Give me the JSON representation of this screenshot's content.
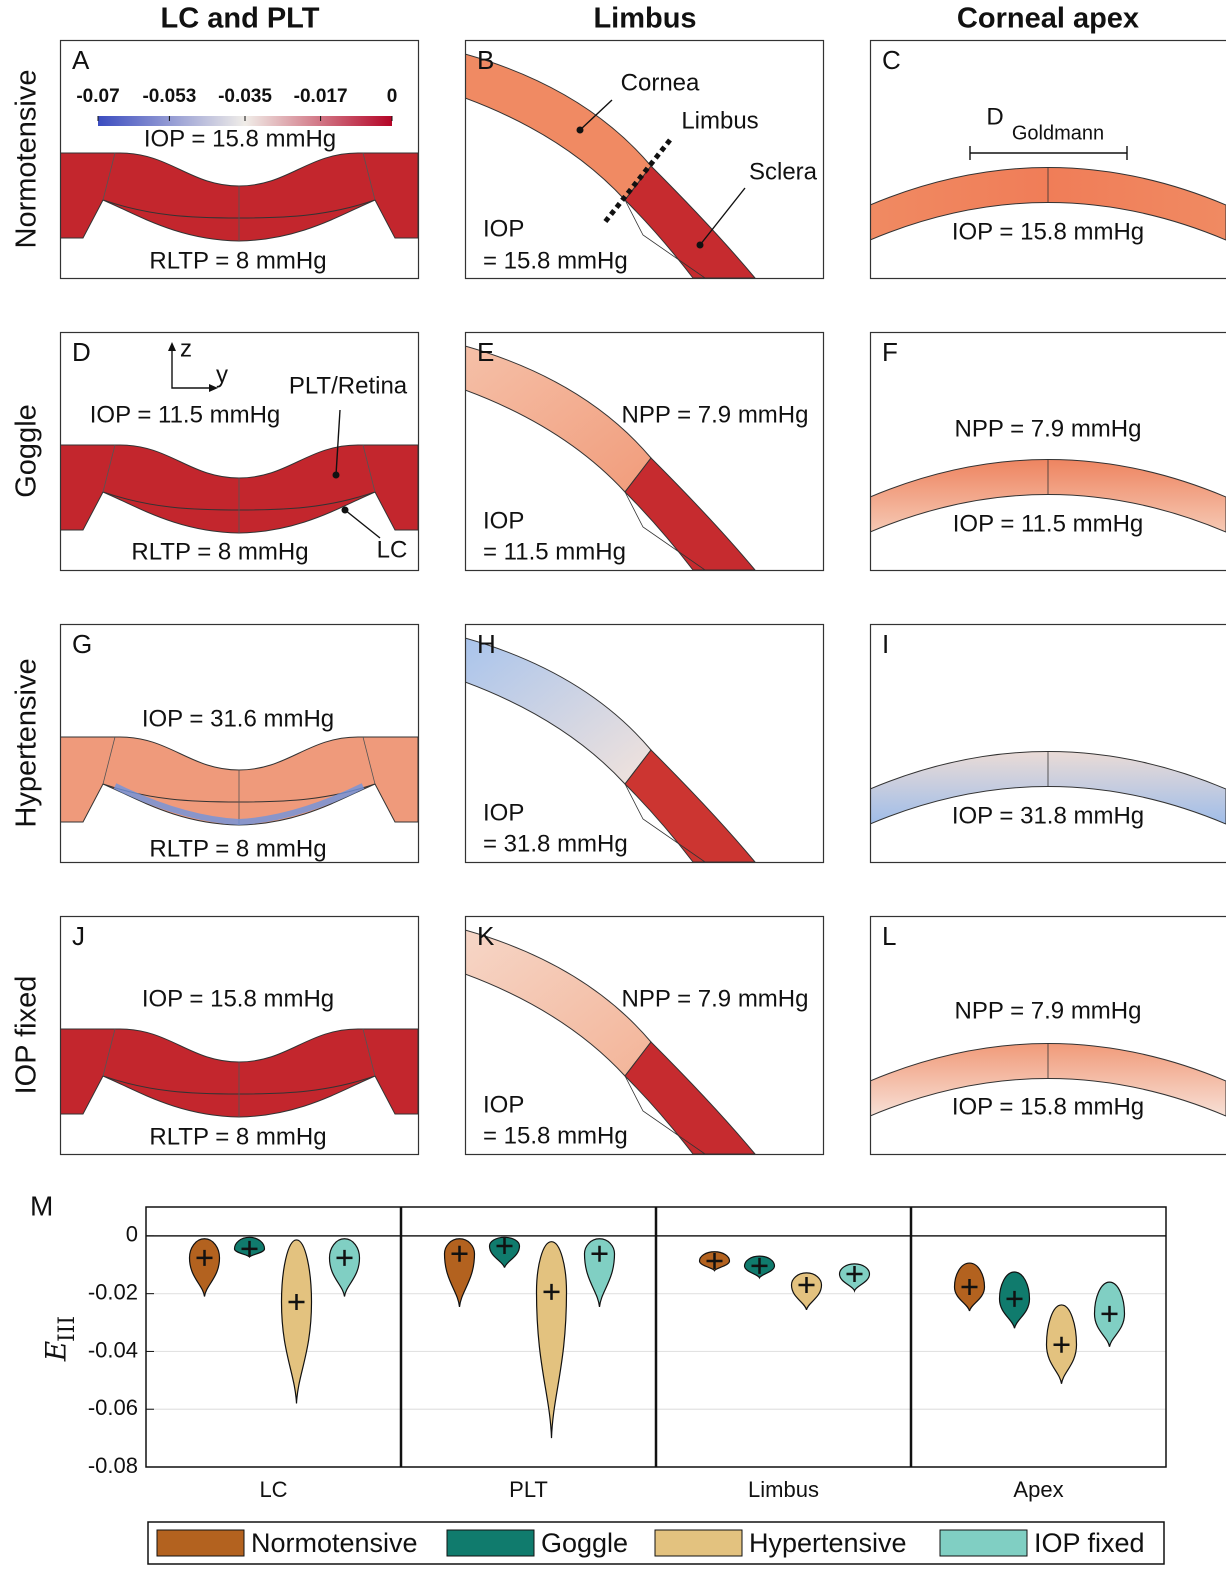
{
  "columns": [
    "LC and PLT",
    "Limbus",
    "Corneal apex"
  ],
  "rows": [
    "Normotensive",
    "Goggle",
    "Hypertensive",
    "IOP fixed"
  ],
  "colorbar": {
    "lim": [
      -0.07,
      0
    ],
    "ticks": [
      -0.07,
      -0.053,
      -0.035,
      -0.017,
      0
    ]
  },
  "panels": [
    {
      "letter": "A",
      "texts": [
        "IOP = 15.8 mmHg",
        "RLTP = 8 mmHg"
      ]
    },
    {
      "letter": "B",
      "texts": [
        "Cornea",
        "Limbus",
        "Sclera",
        "IOP",
        "= 15.8 mmHg"
      ]
    },
    {
      "letter": "C",
      "texts": [
        "D",
        "Goldmann",
        "IOP = 15.8 mmHg"
      ]
    },
    {
      "letter": "D",
      "texts": [
        "z",
        "y",
        "IOP = 11.5 mmHg",
        "PLT/Retina",
        "LC",
        "RLTP = 8 mmHg"
      ]
    },
    {
      "letter": "E",
      "texts": [
        "NPP = 7.9 mmHg",
        "IOP",
        "= 11.5 mmHg"
      ]
    },
    {
      "letter": "F",
      "texts": [
        "NPP = 7.9 mmHg",
        "IOP = 11.5 mmHg"
      ]
    },
    {
      "letter": "G",
      "texts": [
        "IOP = 31.6 mmHg",
        "RLTP = 8 mmHg"
      ]
    },
    {
      "letter": "H",
      "texts": [
        "IOP",
        "= 31.8 mmHg"
      ]
    },
    {
      "letter": "I",
      "texts": [
        "IOP = 31.8 mmHg"
      ]
    },
    {
      "letter": "J",
      "texts": [
        "IOP = 15.8 mmHg",
        "RLTP = 8 mmHg"
      ]
    },
    {
      "letter": "K",
      "texts": [
        "NPP = 7.9 mmHg",
        "IOP",
        "= 15.8 mmHg"
      ]
    },
    {
      "letter": "L",
      "texts": [
        "NPP = 7.9 mmHg",
        "IOP = 15.8 mmHg"
      ]
    }
  ],
  "chart_data": {
    "type": "violin",
    "panel_label": "M",
    "ylabel": "E",
    "ylabel_subscript": "III",
    "categories": [
      "LC",
      "PLT",
      "Limbus",
      "Apex"
    ],
    "ylim": [
      -0.08,
      0.01
    ],
    "yticks": [
      0,
      -0.02,
      -0.04,
      -0.06,
      -0.08
    ],
    "grid": true,
    "series": [
      {
        "name": "Normotensive",
        "color": "#b3621f",
        "mean": [
          -0.0076,
          -0.0062,
          -0.0087,
          -0.0177
        ],
        "min": [
          -0.021,
          -0.0246,
          -0.012,
          -0.026
        ],
        "max": [
          -0.001,
          -0.001,
          -0.0055,
          -0.0094
        ]
      },
      {
        "name": "Goggle",
        "color": "#107b6d",
        "mean": [
          -0.0045,
          -0.0035,
          -0.0104,
          -0.0218
        ],
        "min": [
          -0.0073,
          -0.011,
          -0.0145,
          -0.032
        ],
        "max": [
          -0.0005,
          -0.0005,
          -0.007,
          -0.0125
        ]
      },
      {
        "name": "Hypertensive",
        "color": "#e3c27f",
        "mean": [
          -0.0229,
          -0.0194,
          -0.017,
          -0.0377
        ],
        "min": [
          -0.058,
          -0.07,
          -0.0256,
          -0.0512
        ],
        "max": [
          -0.0014,
          -0.002,
          -0.0128,
          -0.0239
        ]
      },
      {
        "name": "IOP fixed",
        "color": "#80cfc3",
        "mean": [
          -0.0076,
          -0.0062,
          -0.0132,
          -0.027
        ],
        "min": [
          -0.021,
          -0.0246,
          -0.019,
          -0.0384
        ],
        "max": [
          -0.001,
          -0.001,
          -0.0097,
          -0.016
        ]
      }
    ]
  }
}
